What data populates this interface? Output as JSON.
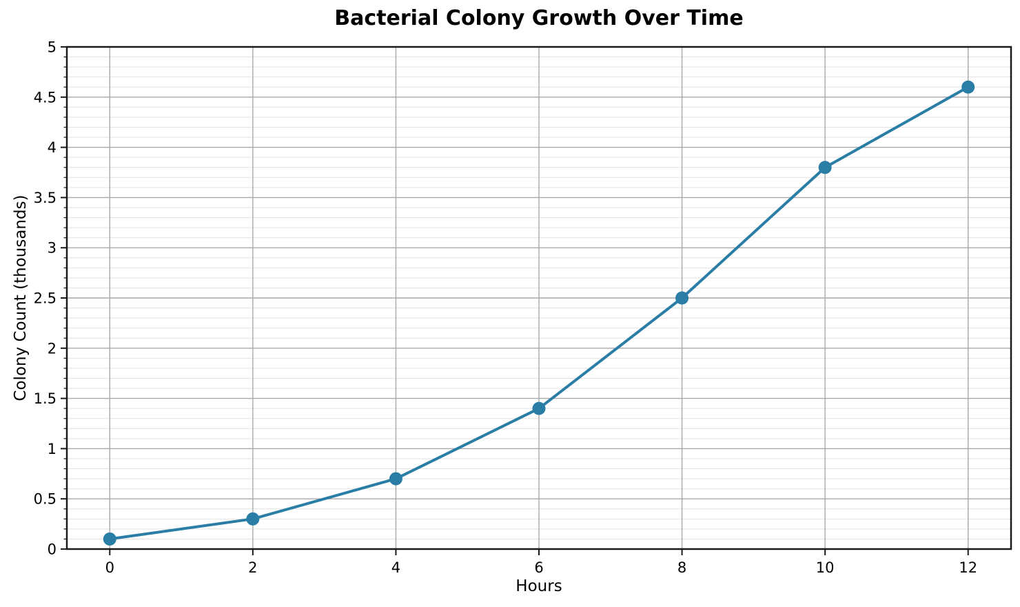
{
  "chart_data": {
    "type": "line",
    "title": "Bacterial Colony Growth Over Time",
    "xlabel": "Hours",
    "ylabel": "Colony Count (thousands)",
    "x": [
      0,
      2,
      4,
      6,
      8,
      10,
      12
    ],
    "series": [
      {
        "name": "Colony count",
        "values": [
          0.1,
          0.3,
          0.7,
          1.4,
          2.5,
          3.8,
          4.6
        ]
      }
    ],
    "xlim": [
      -0.6,
      12.6
    ],
    "ylim": [
      0,
      5
    ],
    "x_tick_labels": [
      "0",
      "2",
      "4",
      "6",
      "8",
      "10",
      "12"
    ],
    "y_tick_labels": [
      "0",
      "0.5",
      "1",
      "1.5",
      "2",
      "2.5",
      "3",
      "3.5",
      "4",
      "4.5",
      "5"
    ],
    "y_minor_step": 0.1,
    "grid": "major-xy + minor-y",
    "legend": "none",
    "colors": {
      "line": "#2a7ea6",
      "marker": "#2a7ea6",
      "major_grid": "#a8a8a8",
      "minor_grid": "#e2e2e2",
      "spine": "#1a1a1a",
      "text": "#000000",
      "background": "#ffffff"
    }
  }
}
